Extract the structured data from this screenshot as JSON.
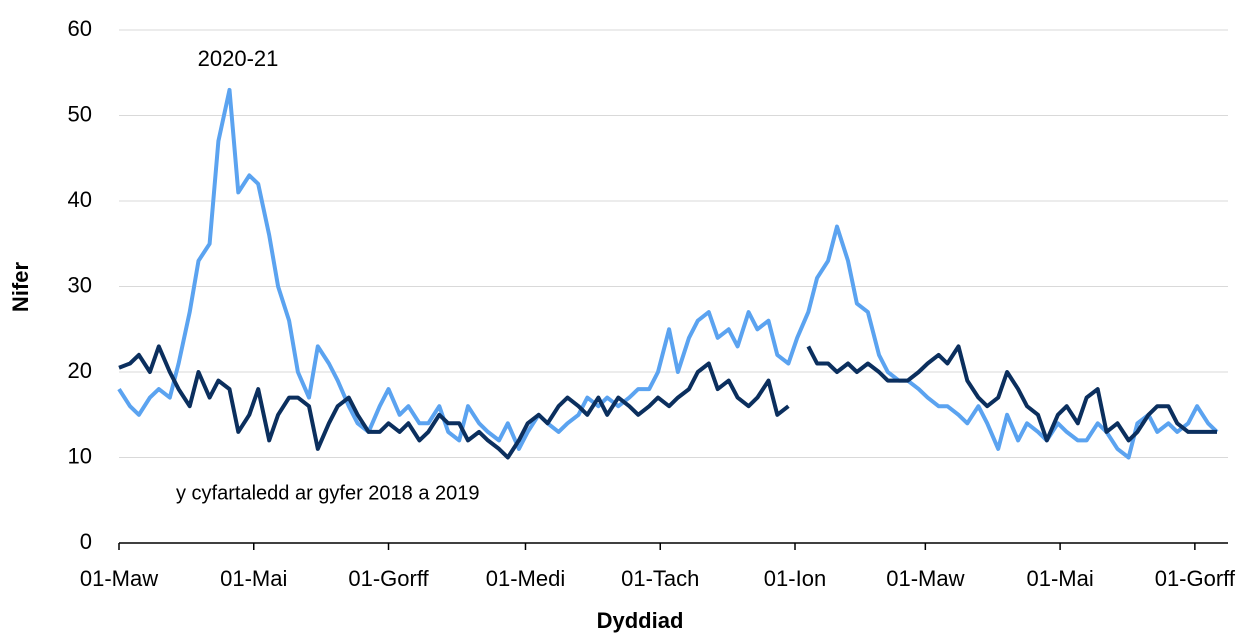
{
  "chart_data": {
    "type": "line",
    "xlabel": "Dyddiad",
    "ylabel": "Nifer",
    "x": [
      0,
      5,
      9,
      14,
      18,
      23,
      27,
      32,
      36,
      41,
      45,
      50,
      54,
      59,
      63,
      68,
      72,
      77,
      81,
      86,
      90,
      95,
      99,
      104,
      108,
      113,
      118,
      122,
      127,
      131,
      136,
      140,
      145,
      149,
      154,
      158,
      163,
      167,
      172,
      176,
      181,
      185,
      190,
      194,
      199,
      203,
      208,
      212,
      217,
      221,
      226,
      231,
      235,
      240,
      244,
      249,
      253,
      258,
      262,
      267,
      271,
      276,
      280,
      285,
      289,
      294,
      298,
      303,
      307,
      312,
      316,
      321,
      325,
      330,
      334,
      339,
      344,
      348,
      353,
      357,
      362,
      366,
      371,
      375,
      380,
      384,
      389,
      393,
      398,
      402,
      407,
      411,
      416,
      420,
      425,
      429,
      434,
      438,
      443,
      447,
      452,
      457,
      461,
      466,
      470,
      475,
      479,
      484,
      488,
      493,
      497
    ],
    "series": [
      {
        "name": "2020-21",
        "color": "#5ba3f0",
        "values": [
          18,
          16,
          15,
          17,
          18,
          17,
          21,
          27,
          33,
          35,
          47,
          53,
          41,
          43,
          42,
          36,
          30,
          26,
          20,
          17,
          23,
          21,
          19,
          16,
          14,
          13,
          16,
          18,
          15,
          16,
          14,
          14,
          16,
          13,
          12,
          16,
          14,
          13,
          12,
          14,
          11,
          13,
          15,
          14,
          13,
          14,
          15,
          17,
          16,
          17,
          16,
          17,
          18,
          18,
          20,
          25,
          20,
          24,
          26,
          27,
          24,
          25,
          23,
          27,
          25,
          26,
          22,
          21,
          24,
          27,
          31,
          33,
          37,
          33,
          28,
          27,
          22,
          20,
          19,
          19,
          18,
          17,
          16,
          16,
          15,
          14,
          16,
          14,
          11,
          15,
          12,
          14,
          13,
          12,
          14,
          13,
          12,
          12,
          14,
          13,
          11,
          10,
          14,
          15,
          13,
          14,
          13,
          14,
          16,
          14,
          13
        ]
      },
      {
        "name": "y cyfartaledd ar gyfer 2018 a 2019",
        "color": "#0b2f5e",
        "values": [
          20.5,
          21,
          22,
          20,
          23,
          20,
          18,
          16,
          20,
          17,
          19,
          18,
          13,
          15,
          18,
          12,
          15,
          17,
          17,
          16,
          11,
          14,
          16,
          17,
          15,
          13,
          13,
          14,
          13,
          14,
          12,
          13,
          15,
          14,
          14,
          12,
          13,
          12,
          11,
          10,
          12,
          14,
          15,
          14,
          16,
          17,
          16,
          15,
          17,
          15,
          17,
          16,
          15,
          16,
          17,
          16,
          17,
          18,
          20,
          21,
          18,
          19,
          17,
          16,
          17,
          19,
          15,
          16,
          null,
          23,
          21,
          21,
          20,
          21,
          20,
          21,
          20,
          19,
          19,
          19,
          20,
          21,
          22,
          21,
          23,
          19,
          17,
          16,
          17,
          20,
          18,
          16,
          15,
          12,
          15,
          16,
          14,
          17,
          18,
          13,
          14,
          12,
          13,
          15,
          16,
          16,
          14,
          13,
          13,
          13,
          13
        ]
      }
    ],
    "xlim": [
      0,
      502
    ],
    "xticks": [
      {
        "value": 0,
        "label": "01-Maw"
      },
      {
        "value": 61,
        "label": "01-Mai"
      },
      {
        "value": 122,
        "label": "01-Gorff"
      },
      {
        "value": 184,
        "label": "01-Medi"
      },
      {
        "value": 245,
        "label": "01-Tach"
      },
      {
        "value": 306,
        "label": "01-Ion"
      },
      {
        "value": 365,
        "label": "01-Maw"
      },
      {
        "value": 426,
        "label": "01-Mai"
      },
      {
        "value": 487,
        "label": "01-Gorff"
      }
    ],
    "ylim": [
      0,
      60
    ],
    "yticks": [
      0,
      10,
      20,
      30,
      40,
      50,
      60
    ],
    "grid": true
  }
}
